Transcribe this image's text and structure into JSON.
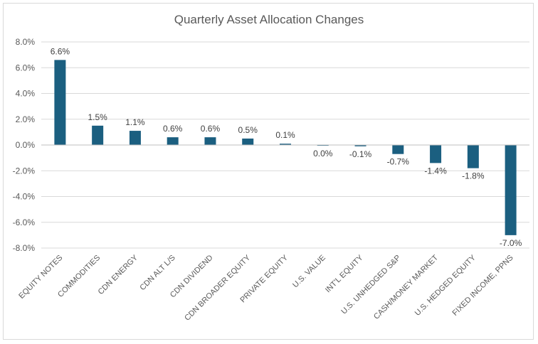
{
  "chart_data": {
    "type": "bar",
    "title": "Quarterly Asset Allocation Changes",
    "categories": [
      "EQUITY NOTES",
      "COMMODITIES",
      "CDN ENERGY",
      "CDN ALT L/S",
      "CDN DIVIDEND",
      "CDN BROADER EQUITY",
      "PRIVATE EQUITY",
      "U.S. VALUE",
      "INT'L EQUITY",
      "U.S. UNHEDGED S&P",
      "CASH/MONEY MARKET",
      "U.S. HEDGED EQUITY",
      "FIXED INCOME, PPNS"
    ],
    "values": [
      6.6,
      1.5,
      1.1,
      0.6,
      0.6,
      0.5,
      0.1,
      -0.05,
      -0.1,
      -0.7,
      -1.4,
      -1.8,
      -7.0
    ],
    "data_labels": [
      "6.6%",
      "1.5%",
      "1.1%",
      "0.6%",
      "0.6%",
      "0.5%",
      "0.1%",
      "0.0%",
      "-0.1%",
      "-0.7%",
      "-1.4%",
      "-1.8%",
      "-7.0%"
    ],
    "ylim": [
      -8,
      8
    ],
    "yticks": [
      8,
      6,
      4,
      2,
      0,
      -2,
      -4,
      -6,
      -8
    ],
    "ytick_labels": [
      "8.0%",
      "6.0%",
      "4.0%",
      "2.0%",
      "0.0%",
      "-2.0%",
      "-4.0%",
      "-6.0%",
      "-8.0%"
    ],
    "grid": true,
    "legend": "none",
    "colors": {
      "bar": "#1b5f80",
      "grid": "#d9d9d9",
      "axis": "#bfbfbf"
    }
  }
}
